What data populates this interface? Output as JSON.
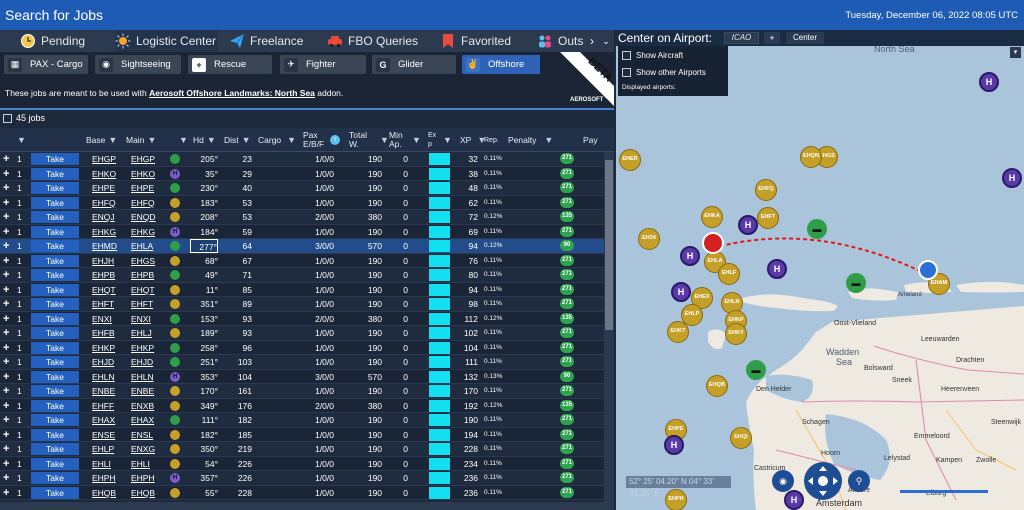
{
  "window": {
    "title": "Search for Jobs",
    "datetime": "Tuesday, December 06, 2022 08:05 UTC"
  },
  "tabs": [
    {
      "label": "Pending",
      "icon": "clock-icon"
    },
    {
      "label": "Logistic Center",
      "icon": "sun-icon"
    },
    {
      "label": "Freelance",
      "icon": "paper-plane-icon"
    },
    {
      "label": "FBO Queries",
      "icon": "car-icon"
    },
    {
      "label": "Favorited",
      "icon": "bookmark-icon"
    },
    {
      "label": "Outs",
      "icon": "people-icon"
    }
  ],
  "categories": [
    {
      "label": "PAX - Cargo",
      "icon": "passenger-icon"
    },
    {
      "label": "Sightseeing",
      "icon": "camera-icon"
    },
    {
      "label": "Rescue",
      "icon": "rescue-icon"
    },
    {
      "label": "Fighter",
      "icon": "fighter-jet-icon"
    },
    {
      "label": "Glider",
      "icon": "glider-icon"
    },
    {
      "label": "Offshore",
      "icon": "offshore-icon"
    }
  ],
  "badge": {
    "beta": "BETA",
    "brand": "AEROSOFT"
  },
  "info": {
    "prefix": "These jobs are meant to be used with ",
    "addon": "Aerosoft Offshore Landmarks: North Sea",
    "suffix": " addon."
  },
  "job_count": "45 jobs",
  "columns": {
    "base": "Base",
    "main": "Main",
    "hd": "Hd",
    "dist": "Dist",
    "cargo": "Cargo",
    "pax1": "Pax",
    "pax2": "E/B/F",
    "total1": "Total",
    "total2": "W.",
    "min1": "Min",
    "min2": "Ap.",
    "exp1": "Ex",
    "exp2": "p",
    "xp": "XP",
    "rep": "Rep.",
    "penalty": "Penalty",
    "pay": "Pay"
  },
  "take_label": "Take",
  "rows": [
    {
      "n": "1",
      "base": "EHGP",
      "main": "EHGP",
      "hd": "205°",
      "dist": "23",
      "pax": "1/0/0",
      "w": "190",
      "min": "0",
      "xp": "32",
      "rep": "0.11%",
      "pay": "271",
      "icon": "g"
    },
    {
      "n": "1",
      "base": "EHKO",
      "main": "EHKO",
      "hd": "35°",
      "dist": "29",
      "pax": "1/0/0",
      "w": "190",
      "min": "0",
      "xp": "38",
      "rep": "0.11%",
      "pay": "271",
      "icon": "p"
    },
    {
      "n": "1",
      "base": "EHPE",
      "main": "EHPE",
      "hd": "230°",
      "dist": "40",
      "pax": "1/0/0",
      "w": "190",
      "min": "0",
      "xp": "48",
      "rep": "0.11%",
      "pay": "271",
      "icon": "g"
    },
    {
      "n": "1",
      "base": "EHFQ",
      "main": "EHFQ",
      "hd": "183°",
      "dist": "53",
      "pax": "1/0/0",
      "w": "190",
      "min": "0",
      "xp": "62",
      "rep": "0.11%",
      "pay": "271",
      "icon": "y"
    },
    {
      "n": "1",
      "base": "ENQJ",
      "main": "ENQD",
      "hd": "208°",
      "dist": "53",
      "pax": "2/0/0",
      "w": "380",
      "min": "0",
      "xp": "72",
      "rep": "0.12%",
      "pay": "135",
      "icon": "y"
    },
    {
      "n": "1",
      "base": "EHKG",
      "main": "EHKG",
      "hd": "184°",
      "dist": "59",
      "pax": "1/0/0",
      "w": "190",
      "min": "0",
      "xp": "69",
      "rep": "0.11%",
      "pay": "271",
      "icon": "p"
    },
    {
      "n": "1",
      "base": "EHMD",
      "main": "EHLA",
      "hd": "277°",
      "dist": "64",
      "pax": "3/0/0",
      "w": "570",
      "min": "0",
      "xp": "94",
      "rep": "0.12%",
      "pay": "90",
      "icon": "g",
      "sel": true
    },
    {
      "n": "1",
      "base": "EHJH",
      "main": "EHGS",
      "hd": "68°",
      "dist": "67",
      "pax": "1/0/0",
      "w": "190",
      "min": "0",
      "xp": "76",
      "rep": "0.11%",
      "pay": "271",
      "icon": "y"
    },
    {
      "n": "1",
      "base": "EHPB",
      "main": "EHPB",
      "hd": "49°",
      "dist": "71",
      "pax": "1/0/0",
      "w": "190",
      "min": "0",
      "xp": "80",
      "rep": "0.11%",
      "pay": "271",
      "icon": "g"
    },
    {
      "n": "1",
      "base": "EHQT",
      "main": "EHQT",
      "hd": "11°",
      "dist": "85",
      "pax": "1/0/0",
      "w": "190",
      "min": "0",
      "xp": "94",
      "rep": "0.11%",
      "pay": "271",
      "icon": "y"
    },
    {
      "n": "1",
      "base": "EHFT",
      "main": "EHFT",
      "hd": "351°",
      "dist": "89",
      "pax": "1/0/0",
      "w": "190",
      "min": "0",
      "xp": "98",
      "rep": "0.11%",
      "pay": "271",
      "icon": "y"
    },
    {
      "n": "1",
      "base": "ENXI",
      "main": "ENXI",
      "hd": "153°",
      "dist": "93",
      "pax": "2/0/0",
      "w": "380",
      "min": "0",
      "xp": "112",
      "rep": "0.12%",
      "pay": "135",
      "icon": "g"
    },
    {
      "n": "1",
      "base": "EHFB",
      "main": "EHLJ",
      "hd": "189°",
      "dist": "93",
      "pax": "1/0/0",
      "w": "190",
      "min": "0",
      "xp": "102",
      "rep": "0.11%",
      "pay": "271",
      "icon": "y"
    },
    {
      "n": "1",
      "base": "EHKP",
      "main": "EHKP",
      "hd": "258°",
      "dist": "96",
      "pax": "1/0/0",
      "w": "190",
      "min": "0",
      "xp": "104",
      "rep": "0.11%",
      "pay": "271",
      "icon": "g"
    },
    {
      "n": "1",
      "base": "EHJD",
      "main": "EHJD",
      "hd": "251°",
      "dist": "103",
      "pax": "1/0/0",
      "w": "190",
      "min": "0",
      "xp": "111",
      "rep": "0.11%",
      "pay": "271",
      "icon": "g"
    },
    {
      "n": "1",
      "base": "EHLN",
      "main": "EHLN",
      "hd": "353°",
      "dist": "104",
      "pax": "3/0/0",
      "w": "570",
      "min": "0",
      "xp": "132",
      "rep": "0.13%",
      "pay": "90",
      "icon": "p"
    },
    {
      "n": "1",
      "base": "ENBE",
      "main": "ENBE",
      "hd": "170°",
      "dist": "161",
      "pax": "1/0/0",
      "w": "190",
      "min": "0",
      "xp": "170",
      "rep": "0.11%",
      "pay": "271",
      "icon": "y"
    },
    {
      "n": "1",
      "base": "EHFF",
      "main": "ENXB",
      "hd": "349°",
      "dist": "176",
      "pax": "2/0/0",
      "w": "380",
      "min": "0",
      "xp": "192",
      "rep": "0.12%",
      "pay": "135",
      "icon": "y"
    },
    {
      "n": "1",
      "base": "EHAX",
      "main": "EHAX",
      "hd": "111°",
      "dist": "182",
      "pax": "1/0/0",
      "w": "190",
      "min": "0",
      "xp": "190",
      "rep": "0.11%",
      "pay": "271",
      "icon": "g"
    },
    {
      "n": "1",
      "base": "ENSE",
      "main": "ENSL",
      "hd": "182°",
      "dist": "185",
      "pax": "1/0/0",
      "w": "190",
      "min": "0",
      "xp": "194",
      "rep": "0.11%",
      "pay": "271",
      "icon": "y"
    },
    {
      "n": "1",
      "base": "EHLP",
      "main": "ENXG",
      "hd": "350°",
      "dist": "219",
      "pax": "1/0/0",
      "w": "190",
      "min": "0",
      "xp": "228",
      "rep": "0.11%",
      "pay": "271",
      "icon": "y"
    },
    {
      "n": "1",
      "base": "EHLI",
      "main": "EHLI",
      "hd": "54°",
      "dist": "226",
      "pax": "1/0/0",
      "w": "190",
      "min": "0",
      "xp": "234",
      "rep": "0.11%",
      "pay": "271",
      "icon": "y"
    },
    {
      "n": "1",
      "base": "EHPH",
      "main": "EHPH",
      "hd": "357°",
      "dist": "226",
      "pax": "1/0/0",
      "w": "190",
      "min": "0",
      "xp": "236",
      "rep": "0.11%",
      "pay": "271",
      "icon": "p"
    },
    {
      "n": "1",
      "base": "EHQB",
      "main": "EHQB",
      "hd": "55°",
      "dist": "228",
      "pax": "1/0/0",
      "w": "190",
      "min": "0",
      "xp": "236",
      "rep": "0.11%",
      "pay": "271",
      "icon": "y"
    }
  ],
  "map": {
    "title": "Center on Airport:",
    "icao_placeholder": "ICAO",
    "plus": "+",
    "center": "Center",
    "show_aircraft": "Show Aircraft",
    "show_other": "Show other Airports",
    "displayed": "Displayed airports:",
    "coords": "52° 25' 04.20\" N 04° 33' 33.35\" E",
    "north_sea": "North Sea",
    "wadden1": "Wadden",
    "wadden2": "Sea",
    "places": [
      "Oost-Vlieland",
      "Leeuwarden",
      "Drachten",
      "Heerenveen",
      "Bolsward",
      "Sneek",
      "Den Helder",
      "Schagen",
      "Hoorn",
      "Steenwijk",
      "Emmeloord",
      "Lelystad",
      "Kampen",
      "Zwolle",
      "Elburg",
      "Castricum",
      "Almere",
      "Amsterdam",
      "Ameland"
    ],
    "airports_gold": [
      "EHER",
      "EHGS",
      "EHFQ",
      "EHKA",
      "EHFT",
      "EH24",
      "EHLA",
      "EHLF",
      "EHLN",
      "EHEX",
      "EHKP",
      "EHLP",
      "EHKY",
      "EHKT",
      "EHQB",
      "EHPE",
      "EHQI",
      "EHPH",
      "EHAM",
      "EHQN"
    ],
    "airports_purple": [
      "H",
      "H",
      "H",
      "H",
      "H",
      "H",
      "H",
      "H"
    ],
    "color_gold": "#c5a028",
    "color_purple": "#5a3aa8",
    "color_green": "#2e9e48",
    "color_route": "#e01a1a"
  },
  "colors": {
    "title_bar": "#1e5bb5",
    "take": "#2360c0",
    "cyan": "#12dff0",
    "pay": "#2ea44f",
    "selected_row": "#234d8a"
  }
}
